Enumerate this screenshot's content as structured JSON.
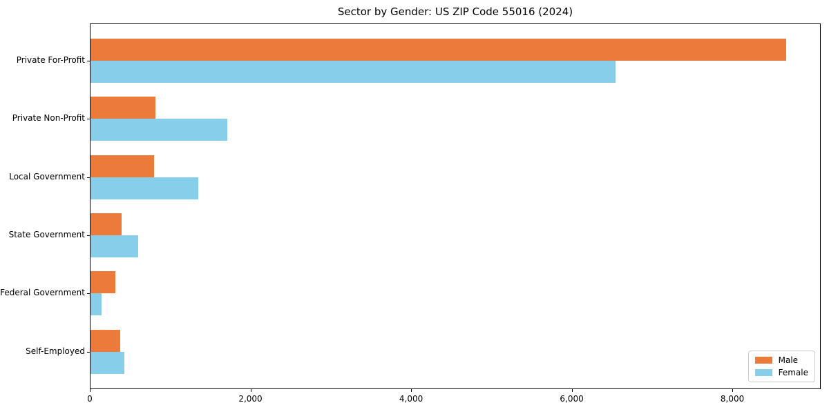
{
  "chart_data": {
    "type": "bar",
    "orientation": "horizontal",
    "title": "Sector by Gender: US ZIP Code 55016 (2024)",
    "categories": [
      "Private For-Profit",
      "Private Non-Profit",
      "Local Government",
      "State Government",
      "Federal Government",
      "Self-Employed"
    ],
    "series": [
      {
        "name": "Male",
        "color": "#EB7A3B",
        "values": [
          8660,
          810,
          790,
          390,
          310,
          370
        ]
      },
      {
        "name": "Female",
        "color": "#87CEEB",
        "values": [
          6540,
          1700,
          1340,
          590,
          140,
          420
        ]
      }
    ],
    "xlabel": "",
    "ylabel": "",
    "xlim": [
      0,
      9100
    ],
    "xticks": [
      0,
      2000,
      4000,
      6000,
      8000
    ],
    "xtick_labels": [
      "0",
      "2,000",
      "4,000",
      "6,000",
      "8,000"
    ],
    "grid": false,
    "legend": {
      "position": "lower-right",
      "entries": [
        "Male",
        "Female"
      ]
    },
    "colors": {
      "spine": "#000000",
      "background": "#ffffff",
      "legend_border": "#cccccc"
    }
  }
}
